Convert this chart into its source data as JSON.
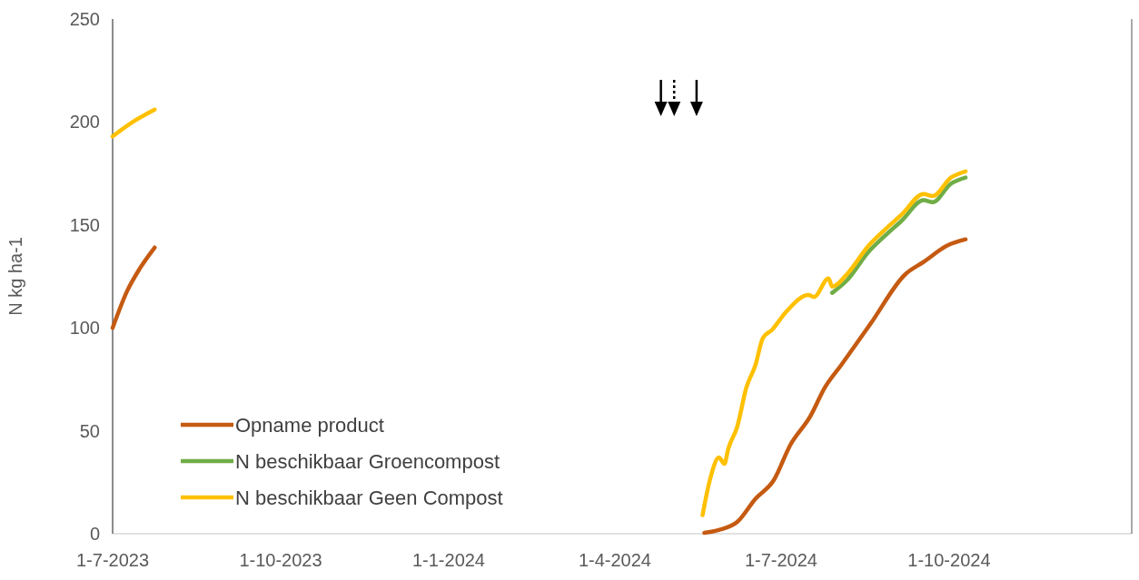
{
  "chart_data": {
    "type": "line",
    "ylabel": "N  kg ha-1",
    "xlim": [
      "2023-07-01",
      "2025-01-09"
    ],
    "xticks": [
      {
        "value": "2023-07-01",
        "label": "1-7-2023"
      },
      {
        "value": "2023-10-01",
        "label": "1-10-2023"
      },
      {
        "value": "2024-01-01",
        "label": "1-1-2024"
      },
      {
        "value": "2024-04-01",
        "label": "1-4-2024"
      },
      {
        "value": "2024-07-01",
        "label": "1-7-2024"
      },
      {
        "value": "2024-10-01",
        "label": "1-10-2024"
      }
    ],
    "ylim": [
      0,
      250
    ],
    "yticks": [
      0,
      50,
      100,
      150,
      200,
      250
    ],
    "grid": false,
    "legend": "bottom left",
    "line_style": "solid",
    "series": [
      {
        "name": "Opname product",
        "color": "#c55a11",
        "x": [
          "2023-07-01",
          "2023-07-09",
          "2023-07-16",
          "2023-07-24",
          "2024-01-01",
          "2024-05-20",
          "2024-05-28",
          "2024-06-07",
          "2024-06-17",
          "2024-06-27",
          "2024-07-06",
          "2024-07-17",
          "2024-07-25",
          "2024-08-03",
          "2024-08-19",
          "2024-09-07",
          "2024-09-17",
          "2024-09-30",
          "2024-10-10"
        ],
        "values": [
          100,
          118,
          129,
          139,
          null,
          0.4,
          1.8,
          5.7,
          17,
          26,
          43,
          57,
          71,
          82,
          102,
          126,
          132,
          140,
          143
        ]
      },
      {
        "name": "N beschikbaar Groencompost",
        "color": "#70ad47",
        "x": [
          "2024-07-29",
          "2024-08-06",
          "2024-08-18",
          "2024-08-26",
          "2024-09-05",
          "2024-09-17",
          "2024-09-22",
          "2024-10-02",
          "2024-10-10"
        ],
        "values": [
          117,
          123,
          137,
          144,
          152,
          162,
          161,
          170,
          173
        ]
      },
      {
        "name": "N beschikbaar Geen Compost",
        "color": "#ffc000",
        "x": [
          "2023-07-01",
          "2023-07-12",
          "2023-07-24",
          "2024-01-01",
          "2024-05-19",
          "2024-05-23",
          "2024-05-28",
          "2024-05-31",
          "2024-06-02",
          "2024-06-07",
          "2024-06-12",
          "2024-06-17",
          "2024-06-21",
          "2024-06-26",
          "2024-07-04",
          "2024-07-16",
          "2024-07-19",
          "2024-07-27",
          "2024-07-29",
          "2024-08-06",
          "2024-08-18",
          "2024-08-26",
          "2024-09-05",
          "2024-09-17",
          "2024-09-22",
          "2024-10-02",
          "2024-10-10"
        ],
        "values": [
          193,
          200,
          206,
          null,
          9,
          26,
          37,
          34,
          41,
          52,
          71,
          82,
          95,
          99,
          108,
          116,
          115,
          124,
          120,
          126,
          140,
          147,
          155,
          165,
          164,
          173,
          176
        ]
      }
    ]
  }
}
